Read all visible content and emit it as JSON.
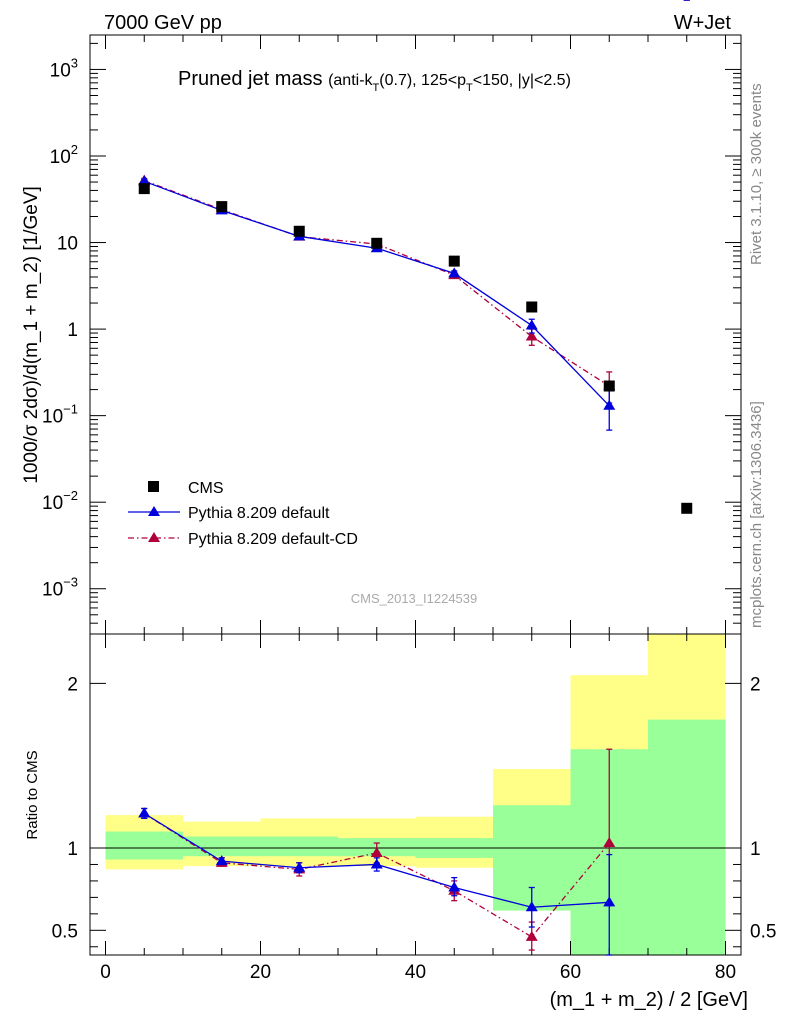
{
  "header": {
    "left": "7000 GeV pp",
    "right": "W+Jet"
  },
  "title_main": "Pruned jet mass",
  "title_cond": {
    "p1": "(anti-k",
    "s1": "T",
    "p2": "(0.7), 125<p",
    "s2": "T",
    "p3": "<150, |y|<2.5)"
  },
  "side_labels": {
    "rivet": "Rivet 3.1.10, ≥ 300k events",
    "mcplots": "mcplots.cern.ch [arXiv:1306.3436]"
  },
  "watermark": "CMS_2013_I1224539",
  "legend": [
    "CMS",
    "Pythia 8.209 default",
    "Pythia 8.209 default-CD"
  ],
  "chart_data": [
    {
      "type": "scatter",
      "title": "Pruned jet mass",
      "ylabel": "1000/σ 2dσ)/d(m_1 + m_2) [1/GeV]",
      "xlabel": "(m_1 + m_2) / 2 [GeV]",
      "ylog": true,
      "xlim": [
        -2,
        82
      ],
      "ylim": [
        0.0003,
        2500
      ],
      "x_ticks": [
        "0",
        "20",
        "40",
        "60",
        "80"
      ],
      "y_ticks": [
        {
          "v": 0.001,
          "base": "10",
          "exp": "−3"
        },
        {
          "v": 0.01,
          "base": "10",
          "exp": "−2"
        },
        {
          "v": 0.1,
          "base": "10",
          "exp": "−1"
        },
        {
          "v": 1,
          "base": "1",
          "exp": ""
        },
        {
          "v": 10,
          "base": "10",
          "exp": ""
        },
        {
          "v": 100,
          "base": "10",
          "exp": "2"
        },
        {
          "v": 1000,
          "base": "10",
          "exp": "3"
        }
      ],
      "x": [
        5,
        15,
        25,
        35,
        45,
        55,
        65,
        75
      ],
      "series": [
        {
          "name": "CMS",
          "color": "#000000",
          "values": [
            42,
            26,
            13.5,
            9.8,
            6.1,
            1.8,
            0.22,
            0.0085
          ]
        },
        {
          "name": "Pythia 8.209 default",
          "color": "#0000dd",
          "values": [
            51,
            23.5,
            11.8,
            8.6,
            4.4,
            1.1,
            0.13
          ],
          "err_low": [
            48,
            22.5,
            11.3,
            8.2,
            4.1,
            0.9,
            0.068
          ],
          "err_high": [
            54,
            24.5,
            12.3,
            9.0,
            4.7,
            1.3,
            0.2
          ]
        },
        {
          "name": "Pythia 8.209 default-CD",
          "color": "#b0003c",
          "values": [
            52,
            24,
            11.7,
            9.6,
            4.2,
            0.82,
            0.22
          ],
          "err_low": [
            49,
            23,
            11.2,
            9.1,
            3.9,
            0.65,
            0.14
          ],
          "err_high": [
            55,
            25,
            12.2,
            10.1,
            4.5,
            1.0,
            0.32
          ]
        }
      ]
    },
    {
      "type": "scatter",
      "ylabel": "Ratio to CMS",
      "xlabel": "(m_1 + m_2) / 2 [GeV]",
      "xlim": [
        -2,
        82
      ],
      "ylim": [
        0.35,
        2.3
      ],
      "y_ticks": [
        "0.5",
        "1",
        "2"
      ],
      "bands": {
        "x_edges": [
          0,
          10,
          20,
          30,
          40,
          50,
          60,
          70,
          80
        ],
        "inner": [
          [
            0.93,
            1.1
          ],
          [
            0.95,
            1.07
          ],
          [
            0.95,
            1.07
          ],
          [
            0.95,
            1.06
          ],
          [
            0.94,
            1.06
          ],
          [
            0.62,
            1.26
          ],
          [
            0.35,
            1.6
          ],
          [
            0.35,
            1.78
          ]
        ],
        "outer": [
          [
            0.87,
            1.2
          ],
          [
            0.89,
            1.16
          ],
          [
            0.89,
            1.18
          ],
          [
            0.89,
            1.18
          ],
          [
            0.88,
            1.19
          ],
          [
            0.62,
            1.48
          ],
          [
            0.35,
            2.05
          ],
          [
            0.35,
            2.3
          ]
        ],
        "inner_color": "#99ff99",
        "outer_color": "#ffff88"
      },
      "x": [
        5,
        15,
        25,
        35,
        45,
        55,
        65
      ],
      "series": [
        {
          "name": "Pythia 8.209 default",
          "color": "#0000dd",
          "values": [
            1.21,
            0.92,
            0.88,
            0.9,
            0.76,
            0.64,
            0.67
          ],
          "err_low": [
            1.18,
            0.9,
            0.85,
            0.86,
            0.71,
            0.52,
            0.35
          ],
          "err_high": [
            1.24,
            0.94,
            0.91,
            0.94,
            0.82,
            0.76,
            0.96
          ]
        },
        {
          "name": "Pythia 8.209 default-CD",
          "color": "#b0003c",
          "values": [
            1.21,
            0.91,
            0.87,
            0.97,
            0.74,
            0.46,
            1.03
          ],
          "err_low": [
            1.18,
            0.89,
            0.83,
            0.91,
            0.68,
            0.38,
            0.65
          ],
          "err_high": [
            1.24,
            0.94,
            0.91,
            1.03,
            0.8,
            0.55,
            1.6
          ]
        }
      ]
    }
  ]
}
